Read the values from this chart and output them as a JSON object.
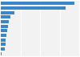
{
  "values": [
    32.7,
    28.9,
    5.9,
    4.2,
    3.5,
    3.2,
    2.9,
    2.5,
    2.3,
    2.1,
    1.8,
    0.2
  ],
  "bar_color": "#3a86c8",
  "background_color": "#ffffff",
  "plot_bg_color": "#f2f2f2",
  "grid_color": "#ffffff",
  "figsize": [
    1.0,
    0.71
  ],
  "dpi": 100,
  "bar_height": 0.7,
  "xlim_max": 35.0
}
